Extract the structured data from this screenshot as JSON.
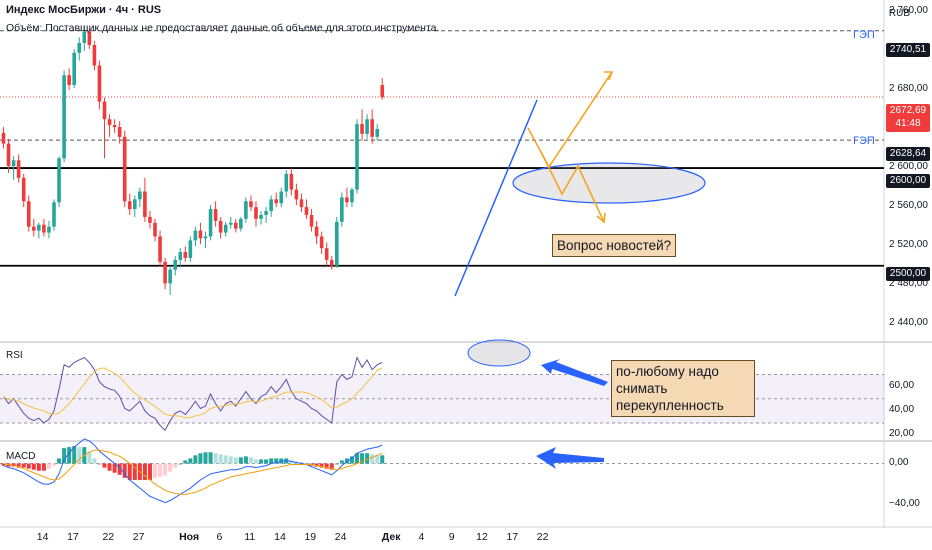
{
  "header": {
    "title": "Индекс МосБиржи · 4ч · RUS",
    "volume_note": "Объём: Поставщик данных не предоставляет данные об объеме для этого инструмента."
  },
  "currency": "RUB",
  "price_axis": {
    "ticks": [
      "2 760,00",
      "2 720,00",
      "2 680,00",
      "2 640,00",
      "2 600,00",
      "2 560,00",
      "2 520,00",
      "2 480,00",
      "2 440,00"
    ],
    "tick_values": [
      2760,
      2720,
      2680,
      2640,
      2600,
      2560,
      2520,
      2480,
      2440
    ],
    "range": [
      2424,
      2770
    ]
  },
  "price_tags": {
    "gap_high": "2740,51",
    "last": "2672,69",
    "countdown": "41:48",
    "gap_low": "2628,64",
    "support_2600": "2600,00",
    "support_2500": "2500,00"
  },
  "gap_labels": {
    "upper": "ГЭП",
    "lower": "ГЭП"
  },
  "annotations": {
    "news_question": "Вопрос новостей?",
    "rsi_note": [
      "по-любому надо",
      "снимать",
      "перекупленность"
    ]
  },
  "rsi": {
    "label": "RSI",
    "ticks": [
      "60,00",
      "40,00",
      "20,00"
    ],
    "tick_values": [
      60,
      40,
      20
    ],
    "range": [
      16,
      96
    ]
  },
  "macd": {
    "label": "MACD",
    "ticks": [
      "0,00",
      "−40,00"
    ],
    "tick_values": [
      0,
      -40
    ],
    "range": [
      -55,
      20
    ]
  },
  "time_axis": {
    "labels": [
      {
        "t": "14",
        "i": 3,
        "bold": false
      },
      {
        "t": "17",
        "i": 9,
        "bold": false
      },
      {
        "t": "22",
        "i": 16,
        "bold": false
      },
      {
        "t": "27",
        "i": 22,
        "bold": false
      },
      {
        "t": "Ноя",
        "i": 32,
        "bold": true
      },
      {
        "t": "6",
        "i": 38,
        "bold": false
      },
      {
        "t": "11",
        "i": 44,
        "bold": false
      },
      {
        "t": "14",
        "i": 50,
        "bold": false
      },
      {
        "t": "19",
        "i": 56,
        "bold": false
      },
      {
        "t": "24",
        "i": 62,
        "bold": false
      },
      {
        "t": "Дек",
        "i": 72,
        "bold": true
      },
      {
        "t": "4",
        "i": 78,
        "bold": false
      },
      {
        "t": "9",
        "i": 84,
        "bold": false
      },
      {
        "t": "12",
        "i": 90,
        "bold": false
      },
      {
        "t": "17",
        "i": 96,
        "bold": false
      },
      {
        "t": "22",
        "i": 102,
        "bold": false
      }
    ]
  },
  "colors": {
    "up": "#26a69a",
    "down": "#ef3b3b",
    "grid": "#e0e3eb",
    "trend": "#2962ff",
    "forecast": "#f5a623",
    "rsi_ma": "#f5c242",
    "rsi": "#5b4fa8",
    "macd": "#2962ff",
    "signal": "#f59e0b"
  },
  "chart_data": {
    "type": "candlestick",
    "title": "Индекс МосБиржи · 4ч · RUS",
    "y_range": [
      2424,
      2770
    ],
    "candles": [
      [
        2636,
        2642,
        2620,
        2625
      ],
      [
        2625,
        2630,
        2595,
        2602
      ],
      [
        2602,
        2612,
        2588,
        2608
      ],
      [
        2608,
        2614,
        2585,
        2590
      ],
      [
        2590,
        2594,
        2560,
        2566
      ],
      [
        2566,
        2572,
        2535,
        2540
      ],
      [
        2540,
        2548,
        2530,
        2536
      ],
      [
        2536,
        2544,
        2528,
        2542
      ],
      [
        2542,
        2548,
        2530,
        2534
      ],
      [
        2534,
        2546,
        2528,
        2540
      ],
      [
        2540,
        2568,
        2536,
        2565
      ],
      [
        2565,
        2612,
        2560,
        2610
      ],
      [
        2610,
        2700,
        2606,
        2695
      ],
      [
        2695,
        2702,
        2680,
        2685
      ],
      [
        2685,
        2722,
        2682,
        2718
      ],
      [
        2718,
        2734,
        2710,
        2728
      ],
      [
        2728,
        2746,
        2720,
        2740
      ],
      [
        2740,
        2742,
        2722,
        2726
      ],
      [
        2726,
        2730,
        2700,
        2705
      ],
      [
        2705,
        2710,
        2660,
        2668
      ],
      [
        2668,
        2672,
        2610,
        2650
      ],
      [
        2650,
        2655,
        2632,
        2644
      ],
      [
        2644,
        2650,
        2636,
        2642
      ],
      [
        2642,
        2648,
        2625,
        2632
      ],
      [
        2632,
        2638,
        2560,
        2566
      ],
      [
        2566,
        2574,
        2552,
        2558
      ],
      [
        2558,
        2572,
        2550,
        2568
      ],
      [
        2568,
        2580,
        2560,
        2576
      ],
      [
        2576,
        2590,
        2545,
        2550
      ],
      [
        2550,
        2556,
        2538,
        2544
      ],
      [
        2544,
        2548,
        2525,
        2530
      ],
      [
        2530,
        2536,
        2500,
        2504
      ],
      [
        2504,
        2508,
        2476,
        2482
      ],
      [
        2482,
        2500,
        2470,
        2496
      ],
      [
        2496,
        2510,
        2490,
        2506
      ],
      [
        2506,
        2518,
        2500,
        2514
      ],
      [
        2514,
        2520,
        2504,
        2508
      ],
      [
        2508,
        2530,
        2504,
        2526
      ],
      [
        2526,
        2540,
        2520,
        2536
      ],
      [
        2536,
        2544,
        2522,
        2528
      ],
      [
        2528,
        2535,
        2518,
        2530
      ],
      [
        2530,
        2562,
        2526,
        2558
      ],
      [
        2558,
        2566,
        2540,
        2546
      ],
      [
        2546,
        2550,
        2528,
        2534
      ],
      [
        2534,
        2545,
        2530,
        2542
      ],
      [
        2542,
        2550,
        2538,
        2544
      ],
      [
        2544,
        2548,
        2534,
        2538
      ],
      [
        2538,
        2550,
        2535,
        2548
      ],
      [
        2548,
        2570,
        2544,
        2566
      ],
      [
        2566,
        2572,
        2556,
        2560
      ],
      [
        2560,
        2566,
        2540,
        2548
      ],
      [
        2548,
        2556,
        2542,
        2552
      ],
      [
        2552,
        2560,
        2544,
        2556
      ],
      [
        2556,
        2572,
        2550,
        2568
      ],
      [
        2568,
        2575,
        2560,
        2564
      ],
      [
        2564,
        2580,
        2560,
        2576
      ],
      [
        2576,
        2598,
        2570,
        2594
      ],
      [
        2594,
        2600,
        2572,
        2578
      ],
      [
        2578,
        2584,
        2562,
        2568
      ],
      [
        2568,
        2574,
        2555,
        2560
      ],
      [
        2560,
        2568,
        2548,
        2552
      ],
      [
        2552,
        2558,
        2535,
        2540
      ],
      [
        2540,
        2546,
        2522,
        2530
      ],
      [
        2530,
        2535,
        2512,
        2518
      ],
      [
        2518,
        2524,
        2500,
        2506
      ],
      [
        2506,
        2510,
        2496,
        2500
      ],
      [
        2500,
        2550,
        2498,
        2545
      ],
      [
        2545,
        2575,
        2540,
        2570
      ],
      [
        2570,
        2580,
        2560,
        2565
      ],
      [
        2565,
        2580,
        2560,
        2578
      ],
      [
        2578,
        2650,
        2574,
        2645
      ],
      [
        2645,
        2660,
        2628,
        2635
      ],
      [
        2635,
        2655,
        2630,
        2650
      ],
      [
        2650,
        2660,
        2625,
        2632
      ],
      [
        2632,
        2645,
        2628,
        2640
      ],
      [
        2685,
        2692,
        2670,
        2672.69
      ]
    ],
    "horizontal_levels": [
      2740.51,
      2628.64,
      2600,
      2500
    ],
    "rsi_values": [
      52,
      46,
      50,
      44,
      38,
      34,
      32,
      34,
      30,
      33,
      40,
      58,
      78,
      76,
      80,
      82,
      84,
      80,
      74,
      64,
      60,
      58,
      57,
      52,
      42,
      40,
      44,
      48,
      40,
      36,
      34,
      28,
      24,
      32,
      38,
      40,
      37,
      42,
      48,
      42,
      44,
      54,
      46,
      40,
      46,
      48,
      44,
      50,
      56,
      50,
      46,
      52,
      54,
      60,
      55,
      60,
      66,
      56,
      50,
      48,
      46,
      42,
      40,
      36,
      33,
      30,
      64,
      70,
      66,
      68,
      84,
      76,
      82,
      74,
      78,
      80
    ],
    "macd_values": [
      -2,
      -4,
      -5,
      -7,
      -9,
      -12,
      -15,
      -18,
      -20,
      -20,
      -18,
      -10,
      4,
      10,
      16,
      20,
      24,
      22,
      18,
      12,
      8,
      4,
      0,
      -4,
      -10,
      -16,
      -20,
      -24,
      -28,
      -32,
      -34,
      -36,
      -38,
      -36,
      -33,
      -30,
      -27,
      -24,
      -20,
      -16,
      -13,
      -10,
      -9,
      -8,
      -7,
      -6,
      -6,
      -5,
      -3,
      -3,
      -4,
      -3,
      -2,
      0,
      1,
      2,
      3,
      2,
      1,
      0,
      -1,
      -3,
      -5,
      -7,
      -9,
      -11,
      -7,
      -2,
      2,
      5,
      10,
      12,
      14,
      15,
      16,
      18
    ],
    "macd_signal": [
      0,
      -1,
      -2,
      -3,
      -5,
      -7,
      -9,
      -11,
      -13,
      -15,
      -16,
      -15,
      -11,
      -6,
      -1,
      4,
      8,
      11,
      13,
      13,
      12,
      11,
      9,
      7,
      4,
      0,
      -4,
      -8,
      -12,
      -16,
      -20,
      -23,
      -26,
      -28,
      -29,
      -30,
      -30,
      -29,
      -28,
      -26,
      -24,
      -21,
      -19,
      -17,
      -15,
      -13,
      -12,
      -11,
      -10,
      -9,
      -8,
      -7,
      -6,
      -5,
      -4,
      -3,
      -2,
      -1,
      -1,
      -1,
      -1,
      -1,
      -2,
      -3,
      -4,
      -5,
      -6,
      -5,
      -3,
      -2,
      0,
      2,
      4,
      6,
      8,
      10
    ]
  }
}
